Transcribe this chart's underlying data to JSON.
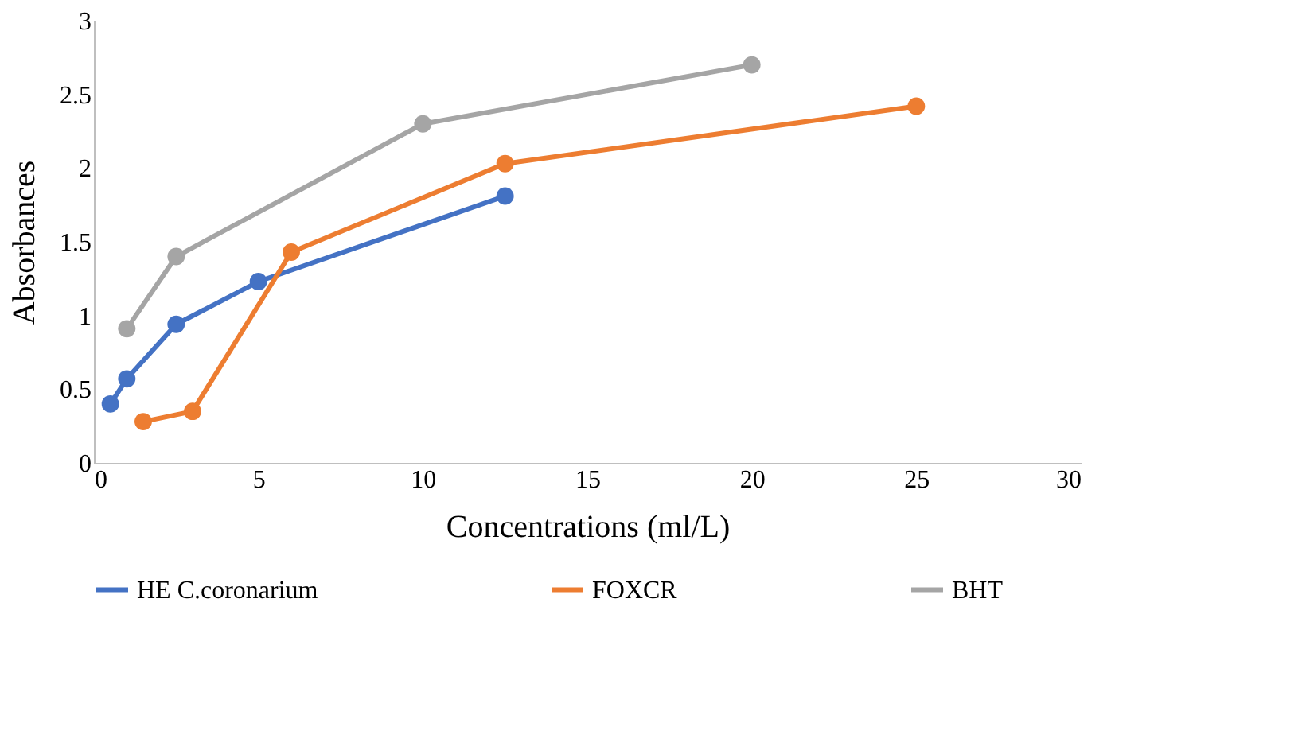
{
  "chart_data": {
    "type": "line",
    "xlabel": "Concentrations (ml/L)",
    "ylabel": "Absorbances",
    "xlim": [
      0,
      30
    ],
    "xticks": [
      0,
      5,
      10,
      15,
      20,
      25,
      30
    ],
    "ylim": [
      0,
      3
    ],
    "yticks": [
      0,
      0.5,
      1,
      1.5,
      2,
      2.5,
      3
    ],
    "grid": false,
    "legend": "bottom",
    "marker": "circle",
    "line_style": "solid",
    "series": [
      {
        "name": "HE C.coronarium",
        "color": "#4472c4",
        "x": [
          0.5,
          1,
          2.5,
          5,
          12.5
        ],
        "values": [
          0.4,
          0.57,
          0.94,
          1.23,
          1.81
        ]
      },
      {
        "name": "FOXCR",
        "color": "#ed7d31",
        "x": [
          1.5,
          3,
          6,
          12.5,
          25
        ],
        "values": [
          0.28,
          0.35,
          1.43,
          2.03,
          2.42
        ]
      },
      {
        "name": "BHT",
        "color": "#a5a5a5",
        "x": [
          1,
          2.5,
          10,
          20
        ],
        "values": [
          0.91,
          1.4,
          2.3,
          2.7
        ]
      }
    ]
  }
}
